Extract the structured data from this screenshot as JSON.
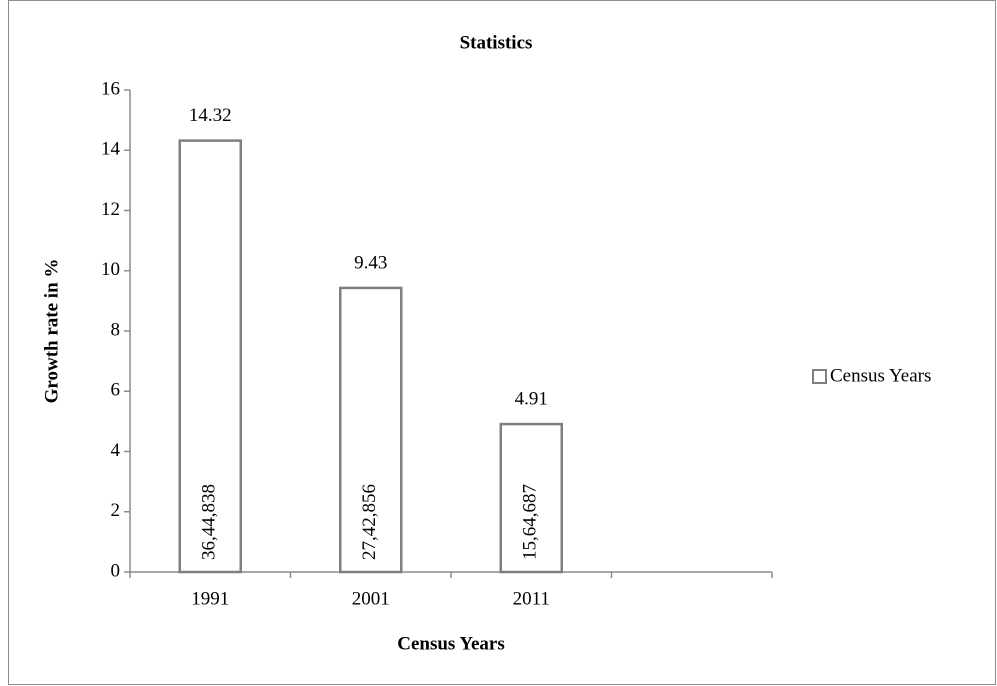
{
  "chart_data": {
    "type": "bar",
    "title": "Statistics",
    "x_label": "Census Years",
    "y_label": "Growth rate in %",
    "categories": [
      "1991",
      "2001",
      "2011",
      null
    ],
    "series": [
      {
        "name": "Census Years",
        "color": "#7f7f7f",
        "values": [
          14.32,
          9.43,
          4.91,
          null
        ]
      }
    ],
    "inner_labels": [
      "36,44,838",
      "27,42,856",
      "15,64,687",
      null
    ],
    "ylim": [
      0,
      16
    ],
    "yticks": [
      0,
      2,
      4,
      6,
      8,
      10,
      12,
      14,
      16
    ],
    "grid": false,
    "legend": "right"
  }
}
